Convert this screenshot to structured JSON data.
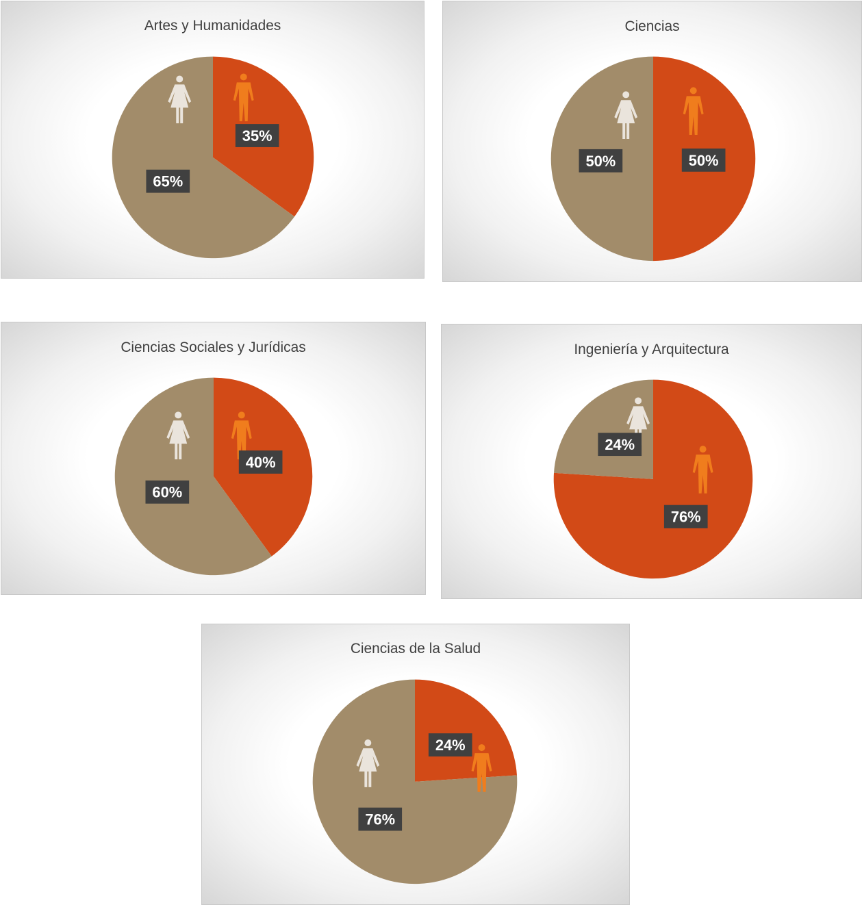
{
  "colors": {
    "male": "#d24a17",
    "female": "#a28c6a",
    "male_icon": "#f07d1d",
    "female_icon": "#eae4dc",
    "label_bg": "#404040"
  },
  "chart_data": [
    {
      "type": "pie",
      "title": "Artes y Humanidades",
      "slices": [
        {
          "key": "male",
          "value": 35,
          "label": "35%"
        },
        {
          "key": "female",
          "value": 65,
          "label": "65%"
        }
      ]
    },
    {
      "type": "pie",
      "title": "Ciencias",
      "slices": [
        {
          "key": "male",
          "value": 50,
          "label": "50%"
        },
        {
          "key": "female",
          "value": 50,
          "label": "50%"
        }
      ]
    },
    {
      "type": "pie",
      "title": "Ciencias Sociales y Jurídicas",
      "slices": [
        {
          "key": "male",
          "value": 40,
          "label": "40%"
        },
        {
          "key": "female",
          "value": 60,
          "label": "60%"
        }
      ]
    },
    {
      "type": "pie",
      "title": "Ingeniería y Arquitectura",
      "slices": [
        {
          "key": "male",
          "value": 76,
          "label": "76%"
        },
        {
          "key": "female",
          "value": 24,
          "label": "24%"
        }
      ]
    },
    {
      "type": "pie",
      "title": "Ciencias de la Salud",
      "slices": [
        {
          "key": "male",
          "value": 24,
          "label": "24%"
        },
        {
          "key": "female",
          "value": 76,
          "label": "76%"
        }
      ]
    }
  ]
}
